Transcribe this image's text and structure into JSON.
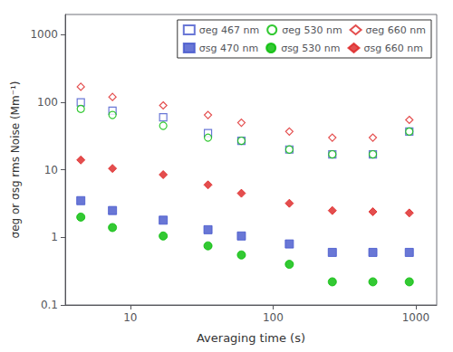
{
  "chart_data": {
    "type": "scatter",
    "xlabel": "Averaging time (s)",
    "ylabel": "σeg or σsg rms Noise (Mm⁻¹)",
    "log": true,
    "xlim": [
      3.5,
      1400
    ],
    "ylim": [
      0.1,
      2000
    ],
    "xticks": [
      10,
      100,
      1000
    ],
    "yticks": [
      0.1,
      1,
      10,
      100,
      1000
    ],
    "grid": false,
    "legend": "upper right",
    "series": [
      {
        "name": "σeg 467 nm",
        "color": "#4455cc",
        "marker": "open_square",
        "x": [
          4.5,
          7.5,
          17,
          35,
          60,
          130,
          260,
          500,
          900
        ],
        "values": [
          100,
          75,
          60,
          35,
          27,
          20,
          17,
          17,
          37
        ]
      },
      {
        "name": "σeg 530 nm",
        "color": "#00bb00",
        "marker": "open_circle",
        "x": [
          4.5,
          7.5,
          17,
          35,
          60,
          130,
          260,
          500,
          900
        ],
        "values": [
          80,
          65,
          45,
          30,
          27,
          20,
          17,
          17,
          37
        ]
      },
      {
        "name": "σeg 660 nm",
        "color": "#dd2222",
        "marker": "open_diamond",
        "x": [
          4.5,
          7.5,
          17,
          35,
          60,
          130,
          260,
          500,
          900
        ],
        "values": [
          170,
          120,
          90,
          65,
          50,
          37,
          30,
          30,
          55
        ]
      },
      {
        "name": "σsg 470 nm",
        "color": "#4455cc",
        "marker": "square",
        "x": [
          4.5,
          7.5,
          17,
          35,
          60,
          130,
          260,
          500,
          900
        ],
        "values": [
          3.5,
          2.5,
          1.8,
          1.3,
          1.05,
          0.8,
          0.6,
          0.6,
          0.6
        ]
      },
      {
        "name": "σsg 530 nm",
        "color": "#00bb00",
        "marker": "circle",
        "x": [
          4.5,
          7.5,
          17,
          35,
          60,
          130,
          260,
          500,
          900
        ],
        "values": [
          2.0,
          1.4,
          1.05,
          0.75,
          0.55,
          0.4,
          0.22,
          0.22,
          0.22
        ]
      },
      {
        "name": "σsg 660 nm",
        "color": "#dd2222",
        "marker": "diamond",
        "x": [
          4.5,
          7.5,
          17,
          35,
          60,
          130,
          260,
          500,
          900
        ],
        "values": [
          14,
          10.5,
          8.5,
          6.0,
          4.5,
          3.2,
          2.5,
          2.4,
          2.3
        ]
      }
    ]
  }
}
